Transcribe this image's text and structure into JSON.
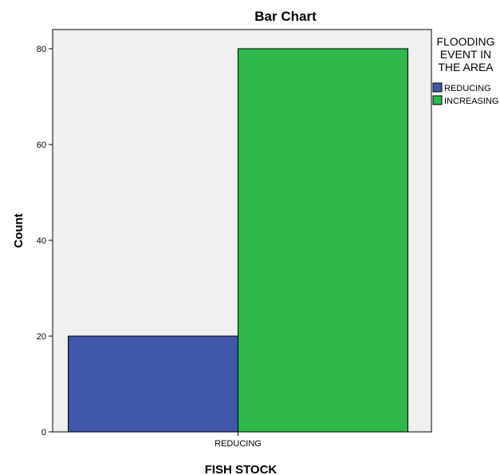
{
  "chart_data": {
    "type": "bar",
    "title": "Bar Chart",
    "xlabel": "FISH STOCK",
    "ylabel": "Count",
    "categories": [
      "REDUCING"
    ],
    "series": [
      {
        "name": "REDUCING",
        "values": [
          20
        ],
        "color": "#3f58a8"
      },
      {
        "name": "INCREASING",
        "values": [
          80
        ],
        "color": "#2eb84a"
      }
    ],
    "yticks": [
      0,
      20,
      40,
      60,
      80
    ],
    "ylim": [
      0,
      84
    ],
    "grid": false,
    "plot_background": "#f0f0f0",
    "legend": {
      "title_lines": [
        "FLOODING",
        "EVENT IN",
        "THE AREA"
      ],
      "placement": "right"
    }
  }
}
